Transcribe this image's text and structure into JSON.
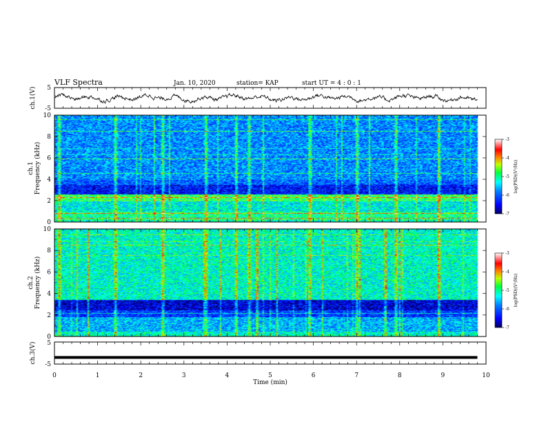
{
  "header": {
    "title": "VLF Spectra",
    "date": "Jan. 10, 2020",
    "station": "station= KAP",
    "start_ut": "start  UT =   4 : 0  : 1"
  },
  "chart_data": [
    {
      "type": "line",
      "panel": "ch1-waveform",
      "ylabel": "ch.1(V)",
      "ylim": [
        -5,
        5
      ],
      "ytick_labels": [
        "5",
        "-5"
      ],
      "x_range_min": [
        0,
        9.8
      ],
      "description_values": "noisy waveform centred near 0 V, amplitude about ±1.5 V"
    },
    {
      "type": "heatmap",
      "panel": "ch1-spectrogram",
      "ylabel": "ch.1\nFrequency (kHz)",
      "ylabel_line1": "ch.1",
      "ylabel_line2": "Frequency (kHz)",
      "ylim": [
        0,
        10
      ],
      "ytick_labels": [
        "0",
        "2",
        "4",
        "6",
        "8",
        "10"
      ],
      "x_range_min": [
        0,
        9.8
      ],
      "colorbar": {
        "label": "log(PSD)(V²/Hz)",
        "range": [
          -7,
          -3
        ],
        "tick_labels": [
          "-3",
          "-4",
          "-5",
          "-6",
          "-7"
        ]
      },
      "bands_khz": [
        {
          "from": 0.0,
          "to": 0.5,
          "level": -5.2
        },
        {
          "from": 0.5,
          "to": 1.0,
          "level": -5.0
        },
        {
          "from": 1.0,
          "to": 2.0,
          "level": -5.3
        },
        {
          "from": 2.0,
          "to": 2.6,
          "level": -4.8
        },
        {
          "from": 2.6,
          "to": 3.5,
          "level": -6.4
        },
        {
          "from": 3.5,
          "to": 4.0,
          "level": -6.0
        },
        {
          "from": 4.0,
          "to": 10.0,
          "level": -5.8
        }
      ],
      "bursts_min": [
        0.1,
        1.4,
        2.5,
        3.5,
        4.2,
        4.5,
        5.9,
        7.0,
        7.9,
        8.9
      ]
    },
    {
      "type": "heatmap",
      "panel": "ch2-spectrogram",
      "ylabel_line1": "ch.2",
      "ylabel_line2": "Frequency (kHz)",
      "ylim": [
        0,
        10
      ],
      "ytick_labels": [
        "0",
        "2",
        "4",
        "6",
        "8",
        "10"
      ],
      "x_range_min": [
        0,
        9.8
      ],
      "colorbar": {
        "label": "log(PSD)(V²/Hz)",
        "range": [
          -7,
          -3
        ],
        "tick_labels": [
          "-3",
          "-4",
          "-5",
          "-6",
          "-7"
        ]
      },
      "bands_khz": [
        {
          "from": 0.0,
          "to": 0.5,
          "level": -5.2
        },
        {
          "from": 0.5,
          "to": 1.8,
          "level": -5.6
        },
        {
          "from": 1.8,
          "to": 2.5,
          "level": -6.2
        },
        {
          "from": 2.5,
          "to": 3.4,
          "level": -6.6
        },
        {
          "from": 3.4,
          "to": 10.0,
          "level": -5.2
        }
      ],
      "bursts_min": [
        0.1,
        1.4,
        2.5,
        3.5,
        4.2,
        4.5,
        5.9,
        7.0,
        7.9,
        8.9
      ]
    },
    {
      "type": "line",
      "panel": "ch3-waveform",
      "ylabel": "ch.3(V)",
      "ylim": [
        -5,
        5
      ],
      "ytick_labels": [
        "5",
        "-5"
      ],
      "x": [
        0,
        9.8
      ],
      "y": [
        -2.0,
        -2.0
      ]
    }
  ],
  "xaxis": {
    "label": "Time (min)",
    "range": [
      0,
      10
    ],
    "tick_labels": [
      "0",
      "1",
      "2",
      "3",
      "4",
      "5",
      "6",
      "7",
      "8",
      "9",
      "10"
    ]
  },
  "colors": {
    "cmap": [
      "#000080",
      "#0000ff",
      "#0080ff",
      "#00ffff",
      "#00ff80",
      "#80ff00",
      "#ffff00",
      "#ff8000",
      "#ff0000",
      "#ffffff"
    ]
  }
}
